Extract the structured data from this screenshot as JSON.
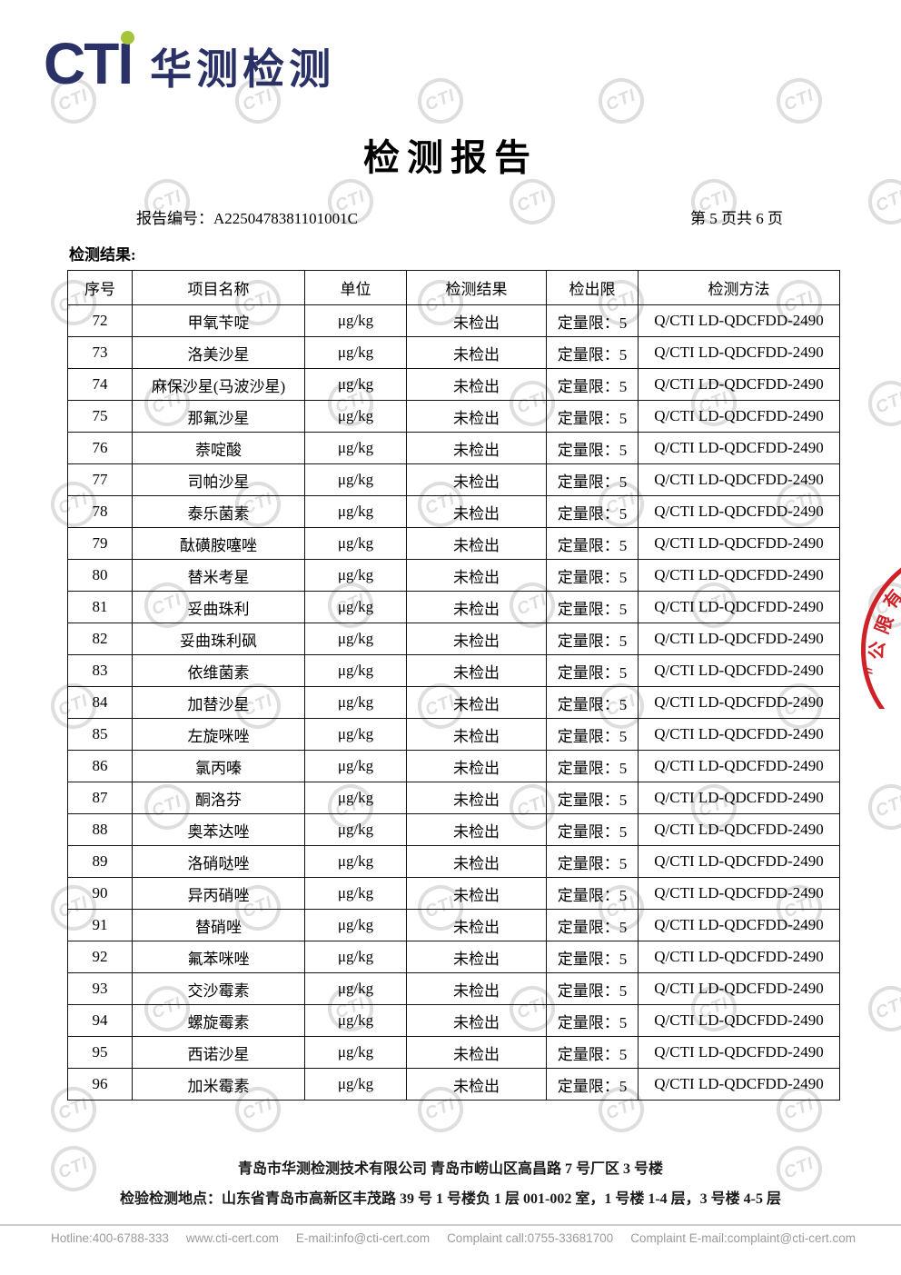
{
  "logo": {
    "cti": "CTI",
    "brand": "华测检测"
  },
  "header": {
    "title": "检测报告",
    "report_no_label": "报告编号：",
    "report_no": "A2250478381101001C",
    "page_info": "第 5 页共 6 页",
    "section_label": "检测结果:"
  },
  "table": {
    "headers": [
      "序号",
      "项目名称",
      "单位",
      "检测结果",
      "检出限",
      "检测方法"
    ],
    "rows": [
      [
        "72",
        "甲氧苄啶",
        "μg/kg",
        "未检出",
        "定量限：5",
        "Q/CTI LD-QDCFDD-2490"
      ],
      [
        "73",
        "洛美沙星",
        "μg/kg",
        "未检出",
        "定量限：5",
        "Q/CTI LD-QDCFDD-2490"
      ],
      [
        "74",
        "麻保沙星(马波沙星)",
        "μg/kg",
        "未检出",
        "定量限：5",
        "Q/CTI LD-QDCFDD-2490"
      ],
      [
        "75",
        "那氟沙星",
        "μg/kg",
        "未检出",
        "定量限：5",
        "Q/CTI LD-QDCFDD-2490"
      ],
      [
        "76",
        "萘啶酸",
        "μg/kg",
        "未检出",
        "定量限：5",
        "Q/CTI LD-QDCFDD-2490"
      ],
      [
        "77",
        "司帕沙星",
        "μg/kg",
        "未检出",
        "定量限：5",
        "Q/CTI LD-QDCFDD-2490"
      ],
      [
        "78",
        "泰乐菌素",
        "μg/kg",
        "未检出",
        "定量限：5",
        "Q/CTI LD-QDCFDD-2490"
      ],
      [
        "79",
        "酞磺胺噻唑",
        "μg/kg",
        "未检出",
        "定量限：5",
        "Q/CTI LD-QDCFDD-2490"
      ],
      [
        "80",
        "替米考星",
        "μg/kg",
        "未检出",
        "定量限：5",
        "Q/CTI LD-QDCFDD-2490"
      ],
      [
        "81",
        "妥曲珠利",
        "μg/kg",
        "未检出",
        "定量限：5",
        "Q/CTI LD-QDCFDD-2490"
      ],
      [
        "82",
        "妥曲珠利砜",
        "μg/kg",
        "未检出",
        "定量限：5",
        "Q/CTI LD-QDCFDD-2490"
      ],
      [
        "83",
        "依维菌素",
        "μg/kg",
        "未检出",
        "定量限：5",
        "Q/CTI LD-QDCFDD-2490"
      ],
      [
        "84",
        "加替沙星",
        "μg/kg",
        "未检出",
        "定量限：5",
        "Q/CTI LD-QDCFDD-2490"
      ],
      [
        "85",
        "左旋咪唑",
        "μg/kg",
        "未检出",
        "定量限：5",
        "Q/CTI LD-QDCFDD-2490"
      ],
      [
        "86",
        "氯丙嗪",
        "μg/kg",
        "未检出",
        "定量限：5",
        "Q/CTI LD-QDCFDD-2490"
      ],
      [
        "87",
        "酮洛芬",
        "μg/kg",
        "未检出",
        "定量限：5",
        "Q/CTI LD-QDCFDD-2490"
      ],
      [
        "88",
        "奥苯达唑",
        "μg/kg",
        "未检出",
        "定量限：5",
        "Q/CTI LD-QDCFDD-2490"
      ],
      [
        "89",
        "洛硝哒唑",
        "μg/kg",
        "未检出",
        "定量限：5",
        "Q/CTI LD-QDCFDD-2490"
      ],
      [
        "90",
        "异丙硝唑",
        "μg/kg",
        "未检出",
        "定量限：5",
        "Q/CTI LD-QDCFDD-2490"
      ],
      [
        "91",
        "替硝唑",
        "μg/kg",
        "未检出",
        "定量限：5",
        "Q/CTI LD-QDCFDD-2490"
      ],
      [
        "92",
        "氟苯咪唑",
        "μg/kg",
        "未检出",
        "定量限：5",
        "Q/CTI LD-QDCFDD-2490"
      ],
      [
        "93",
        "交沙霉素",
        "μg/kg",
        "未检出",
        "定量限：5",
        "Q/CTI LD-QDCFDD-2490"
      ],
      [
        "94",
        "螺旋霉素",
        "μg/kg",
        "未检出",
        "定量限：5",
        "Q/CTI LD-QDCFDD-2490"
      ],
      [
        "95",
        "西诺沙星",
        "μg/kg",
        "未检出",
        "定量限：5",
        "Q/CTI LD-QDCFDD-2490"
      ],
      [
        "96",
        "加米霉素",
        "μg/kg",
        "未检出",
        "定量限：5",
        "Q/CTI LD-QDCFDD-2490"
      ]
    ]
  },
  "seal": {
    "text": "有限公〃"
  },
  "footer": {
    "company_line": "青岛市华测检测技术有限公司  青岛市崂山区高昌路 7 号厂区 3 号楼",
    "address_line": "检验检测地点：山东省青岛市高新区丰茂路 39 号 1 号楼负 1 层 001-002 室，1 号楼 1-4 层，3 号楼 4-5 层",
    "contacts": [
      "Hotline:400-6788-333",
      "www.cti-cert.com",
      "E-mail:info@cti-cert.com",
      "Complaint call:0755-33681700",
      "Complaint E-mail:complaint@cti-cert.com"
    ]
  },
  "watermark": {
    "text": "CTI"
  },
  "colors": {
    "brand_navy": "#2a3166",
    "brand_green": "#a5c43b",
    "seal_red": "#cf2128",
    "watermark_gray": "#dedede",
    "contact_gray": "#9b9b9b",
    "table_border": "#111111"
  }
}
